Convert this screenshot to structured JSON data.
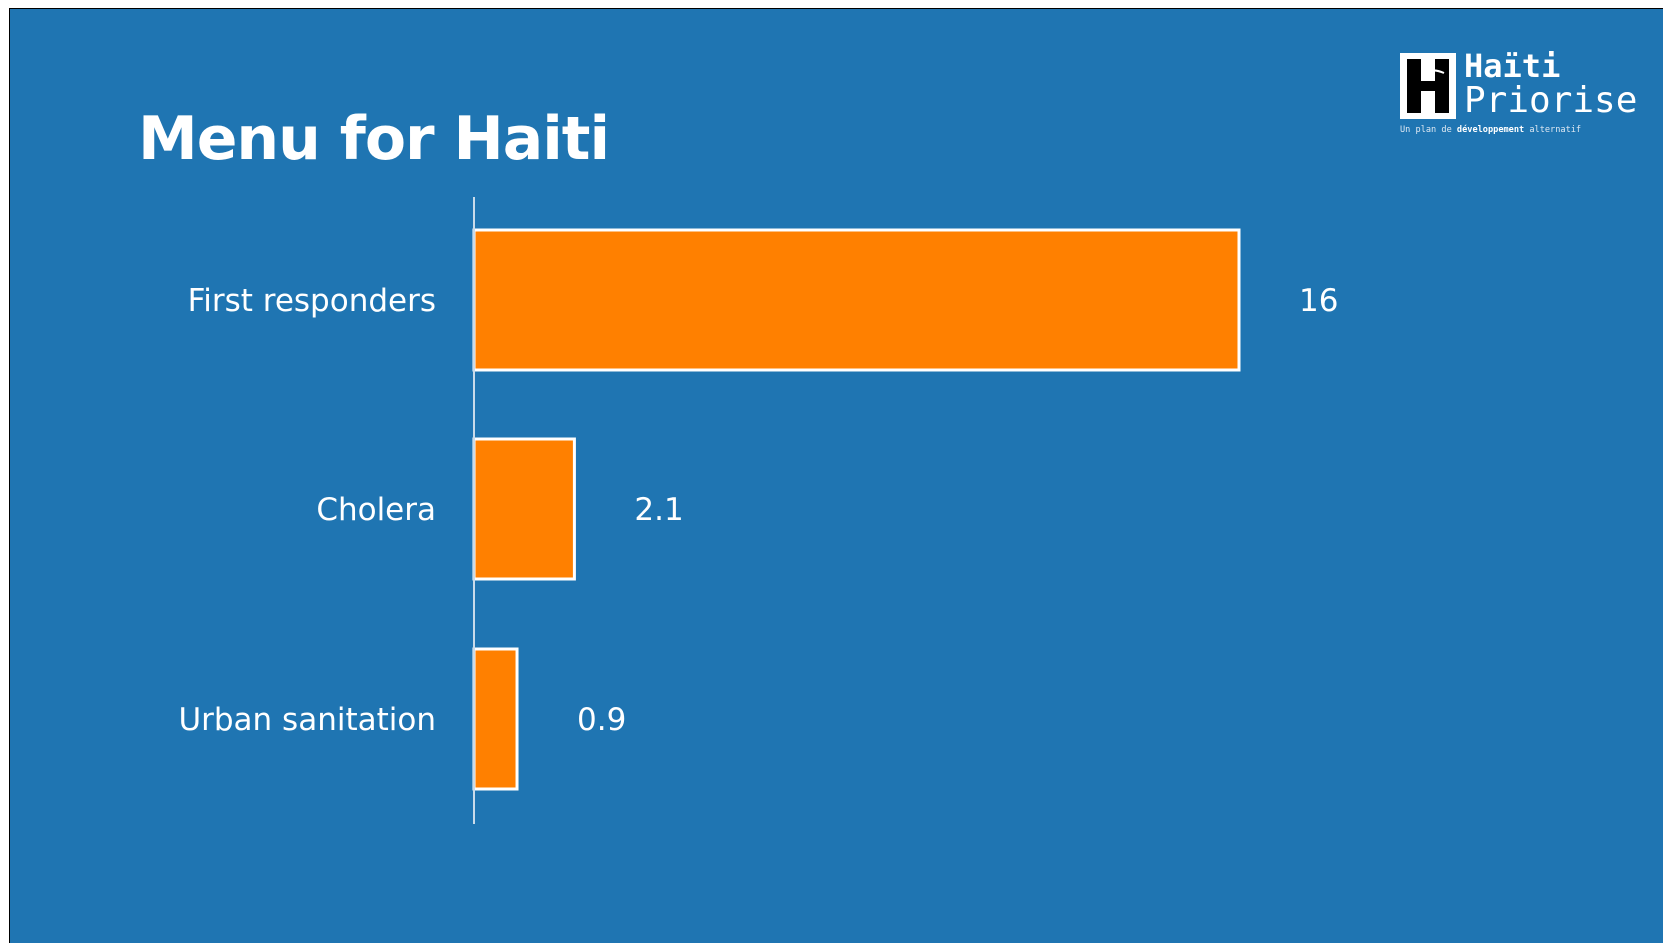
{
  "slide": {
    "title": "Menu for Haiti",
    "background": "#1f75b2"
  },
  "logo": {
    "line1": "Haïti",
    "line2": "Priorise",
    "tagline_pre": "Un plan de ",
    "tagline_bold": "développement",
    "tagline_post": " alternatif"
  },
  "chart_data": {
    "type": "bar",
    "orientation": "horizontal",
    "title": "Menu for Haiti",
    "categories": [
      "First responders",
      "Cholera",
      "Urban sanitation"
    ],
    "values": [
      16,
      2.1,
      0.9
    ],
    "value_labels": [
      "16",
      "2.1",
      "0.9"
    ],
    "xlabel": "",
    "ylabel": "",
    "xlim": [
      0,
      16
    ],
    "grid": false,
    "legend": "none",
    "bar_color": "#ff8000",
    "bar_outline": "#ffffff",
    "axis_color": "#c9dbea"
  }
}
